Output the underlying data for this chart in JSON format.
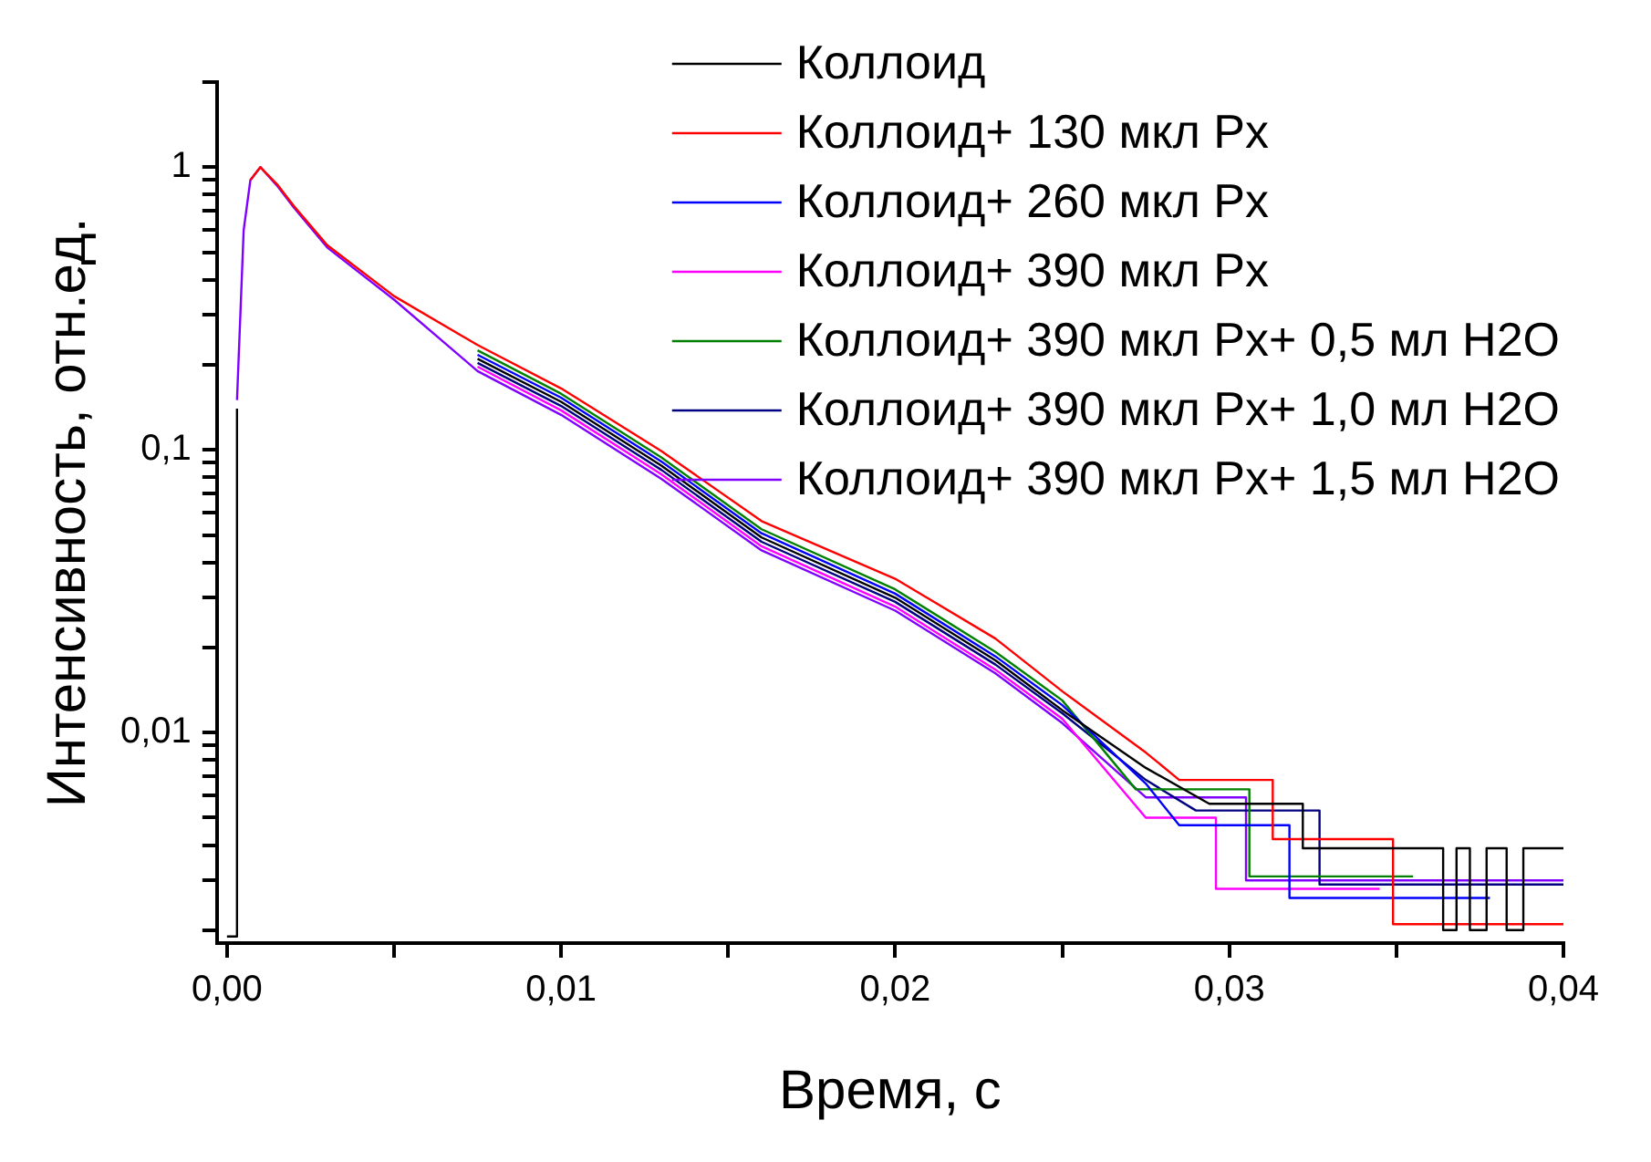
{
  "chart_data": {
    "type": "line",
    "xlabel": "Время, с",
    "ylabel": "Интенсивность, отн.ед.",
    "log": "y",
    "grid": false,
    "legend": "top right",
    "marker": "none",
    "line_style": "solid",
    "xlim": [
      -0.0003,
      0.04
    ],
    "xticks": [
      {
        "value": 0,
        "label": "0,00"
      },
      {
        "value": 0.005,
        "label": null
      },
      {
        "value": 0.01,
        "label": "0,01"
      },
      {
        "value": 0.015,
        "label": null
      },
      {
        "value": 0.02,
        "label": "0,02"
      },
      {
        "value": 0.025,
        "label": null
      },
      {
        "value": 0.03,
        "label": "0,03"
      },
      {
        "value": 0.035,
        "label": null
      },
      {
        "value": 0.04,
        "label": "0,04"
      }
    ],
    "ylim": [
      0.0018,
      2
    ],
    "yticks": [
      {
        "value": 0.002,
        "label": null
      },
      {
        "value": 0.003,
        "label": null
      },
      {
        "value": 0.004,
        "label": null
      },
      {
        "value": 0.005,
        "label": null
      },
      {
        "value": 0.006,
        "label": null
      },
      {
        "value": 0.007,
        "label": null
      },
      {
        "value": 0.008,
        "label": null
      },
      {
        "value": 0.009,
        "label": null
      },
      {
        "value": 0.01,
        "label": "0,01"
      },
      {
        "value": 0.02,
        "label": null
      },
      {
        "value": 0.03,
        "label": null
      },
      {
        "value": 0.04,
        "label": null
      },
      {
        "value": 0.05,
        "label": null
      },
      {
        "value": 0.06,
        "label": null
      },
      {
        "value": 0.07,
        "label": null
      },
      {
        "value": 0.08,
        "label": null
      },
      {
        "value": 0.09,
        "label": null
      },
      {
        "value": 0.1,
        "label": "0,1"
      },
      {
        "value": 0.2,
        "label": null
      },
      {
        "value": 0.3,
        "label": null
      },
      {
        "value": 0.4,
        "label": null
      },
      {
        "value": 0.5,
        "label": null
      },
      {
        "value": 0.6,
        "label": null
      },
      {
        "value": 0.7,
        "label": null
      },
      {
        "value": 0.8,
        "label": null
      },
      {
        "value": 0.9,
        "label": null
      },
      {
        "value": 1,
        "label": "1"
      },
      {
        "value": 2,
        "label": null
      }
    ],
    "series": [
      {
        "name": "Коллоид",
        "color": "#000000",
        "x": [
          0,
          0.0003,
          0.0003,
          0.0005,
          0.0007,
          0.001,
          0.0015,
          0.002,
          0.003,
          0.005,
          0.0075,
          0.01,
          0.013,
          0.016,
          0.02,
          0.023,
          0.025,
          0.0275,
          0.0294,
          0.0294,
          0.0322,
          0.0322,
          0.0364,
          0.0364,
          0.0368,
          0.0368,
          0.0372,
          0.0372,
          0.0377,
          0.0377,
          0.0383,
          0.0383,
          0.0388,
          0.0388,
          0.04
        ],
        "values": [
          0.0019,
          0.0019,
          0.14,
          null,
          null,
          null,
          null,
          null,
          null,
          null,
          0.21,
          0.148,
          0.088,
          0.049,
          0.03,
          0.018,
          0.012,
          0.0075,
          0.0056,
          0.0056,
          0.0056,
          0.0039,
          0.0039,
          0.002,
          0.002,
          0.0039,
          0.0039,
          0.002,
          0.002,
          0.0039,
          0.0039,
          0.002,
          0.002,
          0.0039,
          0.0039
        ]
      },
      {
        "name": "Коллоид+ 130 мкл Px",
        "color": "#ff0000",
        "x": [
          0.0007,
          0.001,
          0.0015,
          0.002,
          0.003,
          0.005,
          0.0075,
          0.01,
          0.013,
          0.016,
          0.02,
          0.023,
          0.025,
          0.0275,
          0.0285,
          0.0313,
          0.0313,
          0.0349,
          0.0349,
          0.04
        ],
        "values": [
          0.9,
          1,
          0.87,
          0.73,
          0.53,
          0.35,
          0.235,
          0.165,
          0.099,
          0.056,
          0.035,
          0.0215,
          0.014,
          0.0085,
          0.0068,
          0.0068,
          0.0042,
          0.0042,
          0.0021,
          0.0021
        ]
      },
      {
        "name": "Коллоид+ 260 мкл Px",
        "color": "#0000ff",
        "x": [
          0.0075,
          0.01,
          0.013,
          0.016,
          0.02,
          0.023,
          0.025,
          0.0275,
          0.0285,
          0.0318,
          0.0318,
          0.0378
        ],
        "values": [
          0.217,
          0.153,
          0.091,
          0.0507,
          0.031,
          0.0186,
          0.0125,
          0.0066,
          0.0047,
          0.0047,
          0.0026,
          0.0026
        ]
      },
      {
        "name": "Коллоид+ 390 мкл Px",
        "color": "#ff00ff",
        "x": [
          0.0075,
          0.01,
          0.013,
          0.016,
          0.02,
          0.023,
          0.025,
          0.0275,
          0.0296,
          0.0296,
          0.0345
        ],
        "values": [
          0.197,
          0.138,
          0.082,
          0.0456,
          0.0279,
          0.0167,
          0.0112,
          0.005,
          0.005,
          0.0028,
          0.0028
        ]
      },
      {
        "name": "Коллоид+ 390 мкл Px+ 0,5 мл H2O",
        "color": "#008000",
        "x": [
          0.0075,
          0.01,
          0.013,
          0.016,
          0.02,
          0.023,
          0.025,
          0.0272,
          0.0306,
          0.0306,
          0.0355
        ],
        "values": [
          0.225,
          0.158,
          0.094,
          0.0524,
          0.0321,
          0.0193,
          0.013,
          0.0063,
          0.0063,
          0.0031,
          0.0031
        ]
      },
      {
        "name": "Коллоид+ 390 мкл Px+ 1,0 мл H2O",
        "color": "#000080",
        "x": [
          0.0075,
          0.01,
          0.013,
          0.016,
          0.02,
          0.023,
          0.025,
          0.0275,
          0.029,
          0.0327,
          0.0327,
          0.04
        ],
        "values": [
          0.203,
          0.143,
          0.085,
          0.0473,
          0.029,
          0.0174,
          0.0117,
          0.0068,
          0.0053,
          0.0053,
          0.0029,
          0.0029
        ]
      },
      {
        "name": "Коллоид+ 390 мкл Px+ 1,5 мл H2O",
        "color": "#8000ff",
        "x": [
          0.0003,
          0.0005,
          0.0007,
          0.001,
          0.0015,
          0.002,
          0.003,
          0.005,
          0.0075,
          0.01,
          0.013,
          0.016,
          0.02,
          0.023,
          0.025,
          0.0275,
          0.0305,
          0.0305,
          0.04
        ],
        "values": [
          0.15,
          0.6,
          0.9,
          1,
          0.86,
          0.72,
          0.52,
          0.34,
          0.19,
          0.133,
          0.079,
          0.0441,
          0.027,
          0.0162,
          0.0108,
          0.0059,
          0.0059,
          0.003,
          0.003
        ]
      }
    ]
  }
}
